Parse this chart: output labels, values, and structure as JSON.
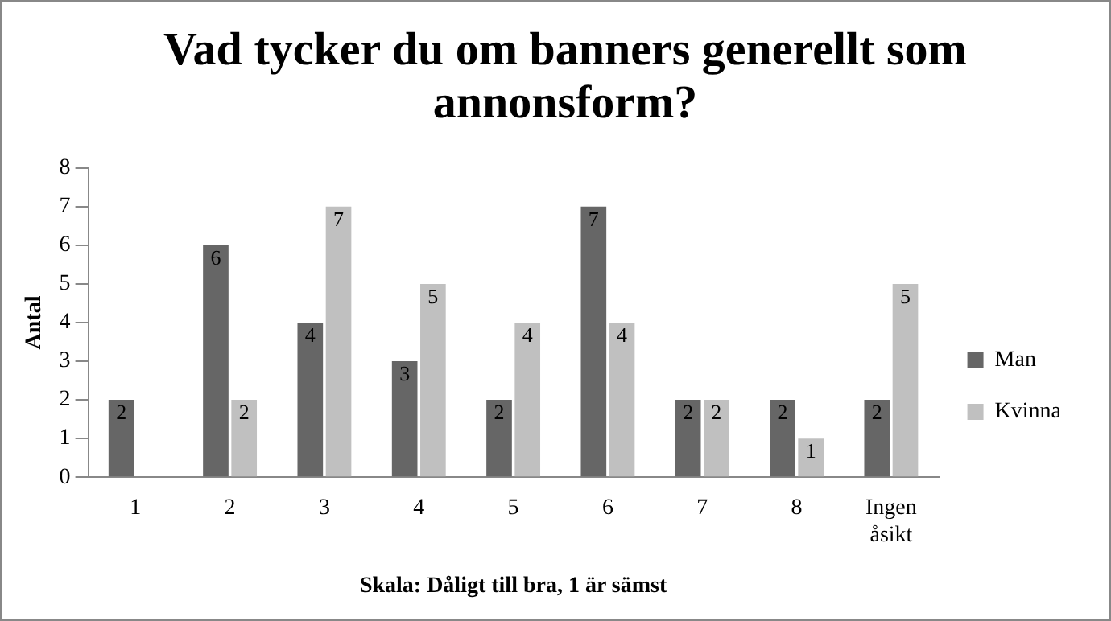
{
  "chart_data": {
    "type": "bar",
    "title": "Vad tycker du om banners generellt som annonsform?",
    "xlabel": "Skala: Dåligt till bra, 1 är sämst",
    "ylabel": "Antal",
    "categories": [
      "1",
      "2",
      "3",
      "4",
      "5",
      "6",
      "7",
      "8",
      "Ingen åsikt"
    ],
    "series": [
      {
        "name": "Man",
        "color": "#666666",
        "values": [
          2,
          6,
          4,
          3,
          2,
          7,
          2,
          2,
          2
        ],
        "value_labels": [
          "2",
          "6",
          "4",
          "3",
          "2",
          "7",
          "2",
          "2",
          "2"
        ]
      },
      {
        "name": "Kvinna",
        "color": "#c0c0c0",
        "values": [
          0,
          2,
          7,
          5,
          4,
          4,
          2,
          1,
          5
        ],
        "value_labels": [
          null,
          "2",
          "7",
          "5",
          "4",
          "4",
          "2",
          "1",
          "5"
        ]
      }
    ],
    "ylim": [
      0,
      8
    ],
    "yticks": [
      0,
      1,
      2,
      3,
      4,
      5,
      6,
      7,
      8
    ],
    "grid": false,
    "legend": "right"
  }
}
